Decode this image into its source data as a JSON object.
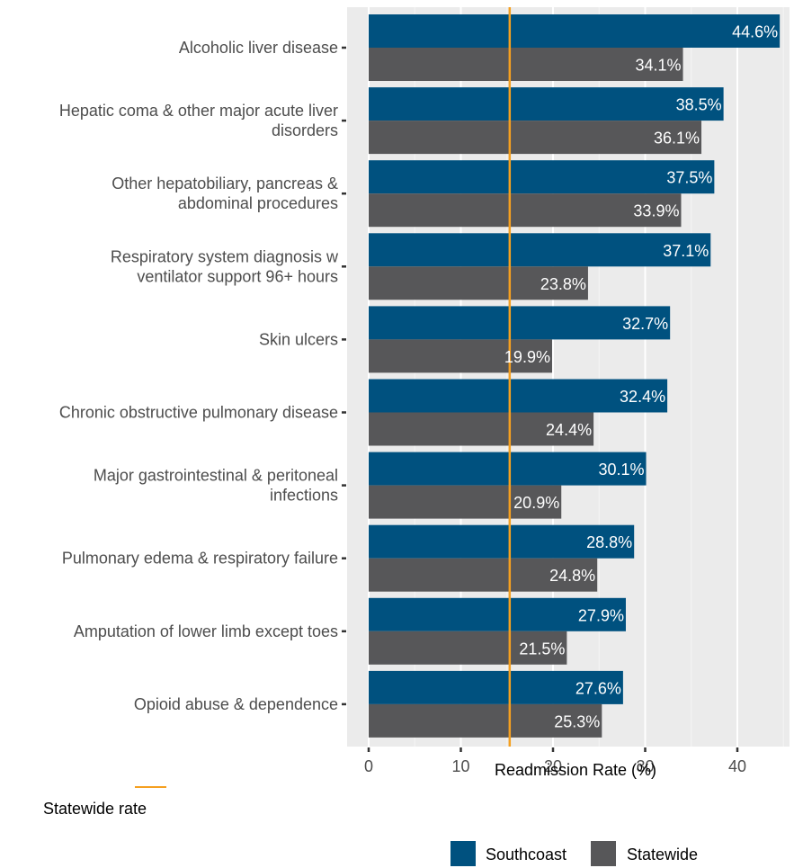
{
  "chart_data": {
    "type": "bar",
    "orientation": "horizontal",
    "categories": [
      "Alcoholic liver disease",
      "Hepatic coma & other major acute liver disorders",
      "Other hepatobiliary, pancreas & abdominal procedures",
      "Respiratory system diagnosis w ventilator support 96+ hours",
      "Skin ulcers",
      "Chronic obstructive pulmonary disease",
      "Major gastrointestinal & peritoneal infections",
      "Pulmonary edema & respiratory failure",
      "Amputation of lower limb except toes",
      "Opioid abuse & dependence"
    ],
    "category_lines": [
      [
        "Alcoholic liver disease"
      ],
      [
        "Hepatic coma & other major acute liver",
        "disorders"
      ],
      [
        "Other hepatobiliary, pancreas &",
        "abdominal procedures"
      ],
      [
        "Respiratory system diagnosis w",
        "ventilator support 96+ hours"
      ],
      [
        "Skin ulcers"
      ],
      [
        "Chronic obstructive pulmonary disease"
      ],
      [
        "Major gastrointestinal & peritoneal",
        "infections"
      ],
      [
        "Pulmonary edema & respiratory failure"
      ],
      [
        "Amputation of lower limb except toes"
      ],
      [
        "Opioid abuse & dependence"
      ]
    ],
    "series": [
      {
        "name": "Southcoast",
        "color": "#00517f",
        "values": [
          44.6,
          38.5,
          37.5,
          37.1,
          32.7,
          32.4,
          30.1,
          28.8,
          27.9,
          27.6
        ],
        "labels": [
          "44.6%",
          "38.5%",
          "37.5%",
          "37.1%",
          "32.7%",
          "32.4%",
          "30.1%",
          "28.8%",
          "27.9%",
          "27.6%"
        ]
      },
      {
        "name": "Statewide",
        "color": "#575759",
        "values": [
          34.1,
          36.1,
          33.9,
          23.8,
          19.9,
          24.4,
          20.9,
          24.8,
          21.5,
          25.3
        ],
        "labels": [
          "34.1%",
          "36.1%",
          "33.9%",
          "23.8%",
          "19.9%",
          "24.4%",
          "20.9%",
          "24.8%",
          "21.5%",
          "25.3%"
        ]
      }
    ],
    "xlabel": "Readmission Rate (%)",
    "xlim": [
      0,
      45
    ],
    "xticks": [
      0,
      10,
      20,
      30,
      40
    ],
    "xtick_labels": [
      "0",
      "10",
      "20",
      "30",
      "40"
    ],
    "reference_line": {
      "value": 15.3,
      "color": "#f5a020",
      "label": "Statewide rate"
    },
    "panel_background": "#ebebeb",
    "grid": true,
    "legend_placement": "bottom"
  }
}
